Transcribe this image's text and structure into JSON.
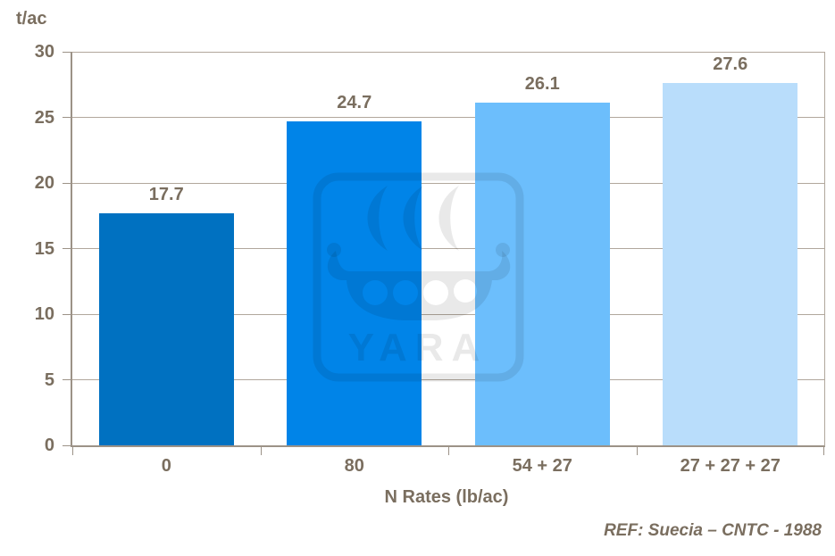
{
  "chart_data": {
    "type": "bar",
    "title": "",
    "categories": [
      "0",
      "80",
      "54 + 27",
      "27 + 27 + 27"
    ],
    "values": [
      17.7,
      24.7,
      26.1,
      27.6
    ],
    "value_labels": [
      "17.7",
      "24.7",
      "26.1",
      "27.6"
    ],
    "xlabel": "N Rates (lb/ac)",
    "ylabel": "t/ac",
    "ylim": [
      0,
      30
    ],
    "yticks": [
      0,
      5,
      10,
      15,
      20,
      25,
      30
    ],
    "grid": "horizontal",
    "legend_position": "none",
    "bar_colors": [
      "#0071C1",
      "#0084E8",
      "#6CBEFC",
      "#B9DDFB"
    ]
  },
  "footnote": "REF: Suecia – CNTC - 1988",
  "watermark_text": "YARA",
  "colors": {
    "text": "#7A6E5F",
    "gridline": "#B1A79C",
    "axis": "#9C9287",
    "background": "#FFFFFF",
    "watermark": "rgba(0,0,0,0.085)"
  }
}
